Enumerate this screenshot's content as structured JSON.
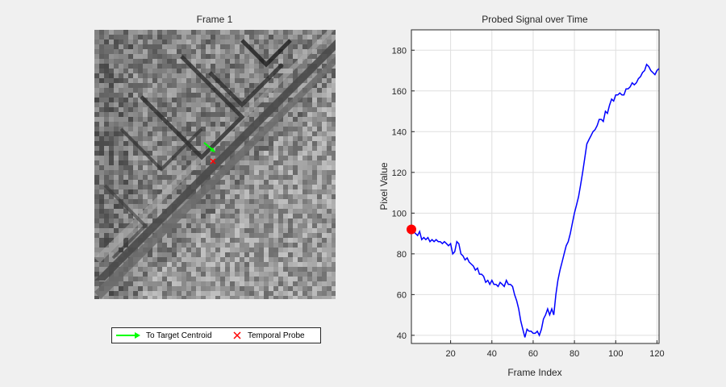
{
  "chart_data": [
    {
      "type": "image",
      "title": "Frame 1",
      "overlay": {
        "arrow_color": "#00ff00",
        "marker_color": "#ff0000",
        "marker_symbol": "x"
      },
      "legend": {
        "location": "bottom",
        "items": [
          {
            "label": "To Target Centroid",
            "color": "#00ff00",
            "symbol": "arrow"
          },
          {
            "label": "Temporal Probe",
            "color": "#ff0000",
            "symbol": "x"
          }
        ]
      }
    },
    {
      "type": "line",
      "title": "Probed Signal over Time",
      "xlabel": "Frame Index",
      "ylabel": "Pixel Value",
      "xlim": [
        1,
        121
      ],
      "ylim": [
        36,
        190
      ],
      "xticks": [
        20,
        40,
        60,
        80,
        100,
        120
      ],
      "yticks": [
        40,
        60,
        80,
        100,
        120,
        140,
        160,
        180
      ],
      "grid": true,
      "series": [
        {
          "color": "#0000ff",
          "x": [
            1,
            2,
            3,
            4,
            5,
            6,
            7,
            8,
            9,
            10,
            11,
            12,
            13,
            14,
            15,
            16,
            17,
            18,
            19,
            20,
            21,
            22,
            23,
            24,
            25,
            26,
            27,
            28,
            29,
            30,
            31,
            32,
            33,
            34,
            35,
            36,
            37,
            38,
            39,
            40,
            41,
            42,
            43,
            44,
            45,
            46,
            47,
            48,
            49,
            50,
            51,
            52,
            53,
            54,
            55,
            56,
            57,
            58,
            59,
            60,
            61,
            62,
            63,
            64,
            65,
            66,
            67,
            68,
            69,
            70,
            71,
            72,
            73,
            74,
            75,
            76,
            77,
            78,
            79,
            80,
            81,
            82,
            83,
            84,
            85,
            86,
            87,
            88,
            89,
            90,
            91,
            92,
            93,
            94,
            95,
            96,
            97,
            98,
            99,
            100,
            101,
            102,
            103,
            104,
            105,
            106,
            107,
            108,
            109,
            110,
            111,
            112,
            113,
            114,
            115,
            116,
            117,
            118,
            119,
            120,
            121
          ],
          "y": [
            92,
            91,
            90,
            89,
            91,
            87,
            88,
            87,
            88,
            86,
            87,
            86,
            87,
            86,
            86,
            85,
            86,
            85,
            84,
            85,
            80,
            81,
            86,
            85,
            80,
            79,
            77,
            78,
            76,
            75,
            74,
            72,
            73,
            70,
            70,
            69,
            66,
            67,
            65,
            67,
            65,
            65,
            64,
            66,
            65,
            64,
            67,
            65,
            65,
            64,
            60,
            57,
            53,
            47,
            43,
            39,
            43,
            42,
            42,
            41,
            41,
            42,
            40,
            43,
            48,
            50,
            53,
            50,
            53,
            50,
            60,
            67,
            72,
            76,
            80,
            84,
            86,
            90,
            95,
            100,
            104,
            108,
            114,
            120,
            127,
            134,
            136,
            138,
            140,
            141,
            143,
            146,
            146,
            145,
            150,
            149,
            153,
            156,
            155,
            158,
            158,
            159,
            158,
            158,
            161,
            161,
            162,
            164,
            163,
            164,
            166,
            167,
            169,
            170,
            173,
            172,
            170,
            169,
            168,
            170,
            171
          ]
        }
      ],
      "highlight_point": {
        "x": 1,
        "y": 92,
        "color": "#ff0000"
      }
    }
  ]
}
